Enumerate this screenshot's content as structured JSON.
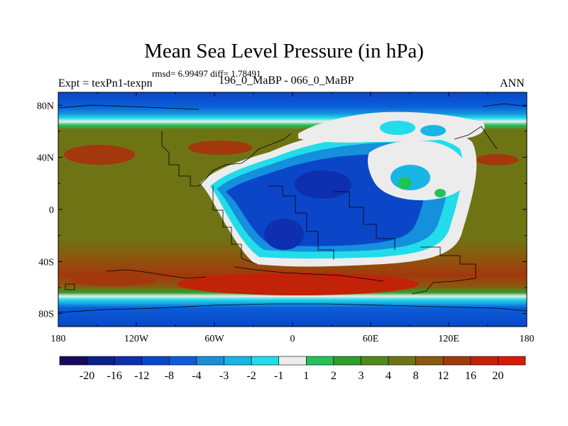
{
  "chart_data": {
    "type": "heatmap",
    "title": "Mean Sea Level Pressure (in hPa)",
    "stats": "rmsd= 6.99497 diff= 1.78491",
    "left_label": "Expt = texPn1-texpn",
    "center_label": "196_0_MaBP - 066_0_MaBP",
    "right_label": "ANN",
    "x_ticks": [
      "180",
      "120W",
      "60W",
      "0",
      "60E",
      "120E",
      "180"
    ],
    "y_ticks": [
      "80N",
      "40N",
      "0",
      "40S",
      "80S"
    ],
    "xlim": [
      -180,
      180
    ],
    "ylim": [
      -90,
      90
    ],
    "colorbar_labels": [
      "-20",
      "-16",
      "-12",
      "-8",
      "-4",
      "-3",
      "-2",
      "-1",
      "1",
      "2",
      "3",
      "4",
      "8",
      "12",
      "16",
      "20"
    ],
    "colorbar_colors": [
      "#1a0a5e",
      "#0b1f8e",
      "#0d2fb0",
      "#0b46c8",
      "#0a5ed8",
      "#1590dc",
      "#19b5e6",
      "#22dcea",
      "#ececec",
      "#20c35a",
      "#2e9e2e",
      "#4f8a1c",
      "#6e7414",
      "#8a5a0e",
      "#a3380c",
      "#c22208",
      "#d81a08"
    ]
  }
}
